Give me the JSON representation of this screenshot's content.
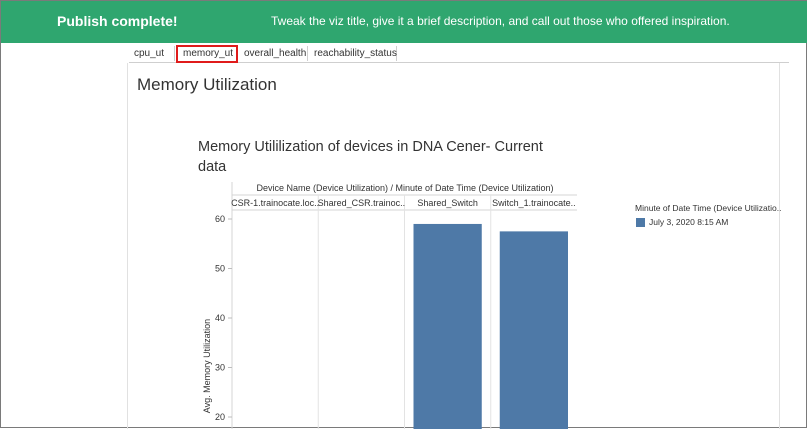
{
  "banner": {
    "title": "Publish complete!",
    "message": "Tweak the viz title, give it a brief description, and call out those who offered inspiration."
  },
  "tabs": [
    {
      "label": "cpu_ut",
      "active": false
    },
    {
      "label": "memory_ut",
      "active": true
    },
    {
      "label": "overall_health",
      "active": false
    },
    {
      "label": "reachability_status",
      "active": false
    }
  ],
  "page_title": "Memory Utilization",
  "chart_data": {
    "type": "bar",
    "title": "Memory Utililization of devices in DNA Cener- Current data",
    "header": "Device Name (Device Utilization) / Minute of Date Time (Device Utilization)",
    "categories": [
      "CSR-1.trainocate.loc..",
      "Shared_CSR.trainoc..",
      "Shared_Switch",
      "Switch_1.trainocate.."
    ],
    "series": [
      {
        "name": "July 3, 2020 8:15 AM",
        "values": [
          null,
          null,
          59,
          57.5
        ]
      }
    ],
    "ylabel": "Avg. Memory Utilization",
    "yticks": [
      20,
      30,
      40,
      50,
      60
    ],
    "ylim": [
      18,
      62
    ],
    "color": "#4e79a7",
    "legend_title": "Minute of Date Time (Device Utilizatio..",
    "legend_placement": "right"
  }
}
